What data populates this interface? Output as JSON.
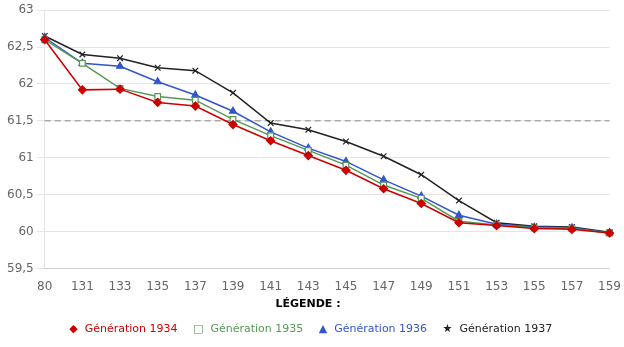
{
  "chart_data": {
    "type": "line",
    "categories": [
      80,
      131,
      133,
      135,
      137,
      139,
      141,
      143,
      145,
      147,
      149,
      151,
      153,
      155,
      157,
      159
    ],
    "series": [
      {
        "name": "◆  Génération 1934",
        "color": "#cc0000",
        "marker": "diamond",
        "line_style": "solid",
        "values": [
          62.6,
          61.92,
          61.93,
          61.75,
          61.7,
          61.45,
          61.23,
          61.03,
          60.83,
          60.58,
          60.38,
          60.12,
          60.08,
          60.04,
          60.03,
          59.98
        ]
      },
      {
        "name": "□  Génération 1935",
        "color": "#559955",
        "marker": "open_square",
        "line_style": "solid",
        "values": [
          62.6,
          62.28,
          61.94,
          61.83,
          61.78,
          61.52,
          61.3,
          61.1,
          60.9,
          60.63,
          60.45,
          60.14,
          60.09,
          60.05,
          60.04,
          59.98
        ]
      },
      {
        "name": "▲  Génération 1936",
        "color": "#3355cc",
        "marker": "triangle",
        "line_style": "solid",
        "values": [
          62.63,
          62.28,
          62.24,
          62.03,
          61.85,
          61.63,
          61.35,
          61.13,
          60.95,
          60.7,
          60.48,
          60.22,
          60.1,
          60.06,
          60.05,
          59.98
        ]
      },
      {
        "name": "★  Génération 1937",
        "color": "#222222",
        "marker": "x",
        "line_style": "solid",
        "values": [
          62.65,
          62.4,
          62.35,
          62.22,
          62.18,
          61.88,
          61.47,
          61.38,
          61.22,
          61.02,
          60.77,
          60.42,
          60.12,
          60.07,
          60.06,
          59.99
        ]
      }
    ],
    "ylim": [
      59.5,
      63.0
    ],
    "yticks": [
      {
        "value": 59.5,
        "label": "59,5"
      },
      60,
      {
        "value": 60.5,
        "label": "60,5"
      },
      61,
      {
        "value": 61.5,
        "label": "61,5"
      },
      62,
      {
        "value": 62.5,
        "label": "62,5"
      },
      63
    ],
    "grid": "y",
    "legend": "bottom",
    "annotations": [
      {
        "type": "hline",
        "y": 61.5,
        "line_style": "dashed",
        "color": "#888888"
      },
      {
        "type": "legend_title",
        "text": "LÉGENDE :"
      }
    ]
  }
}
